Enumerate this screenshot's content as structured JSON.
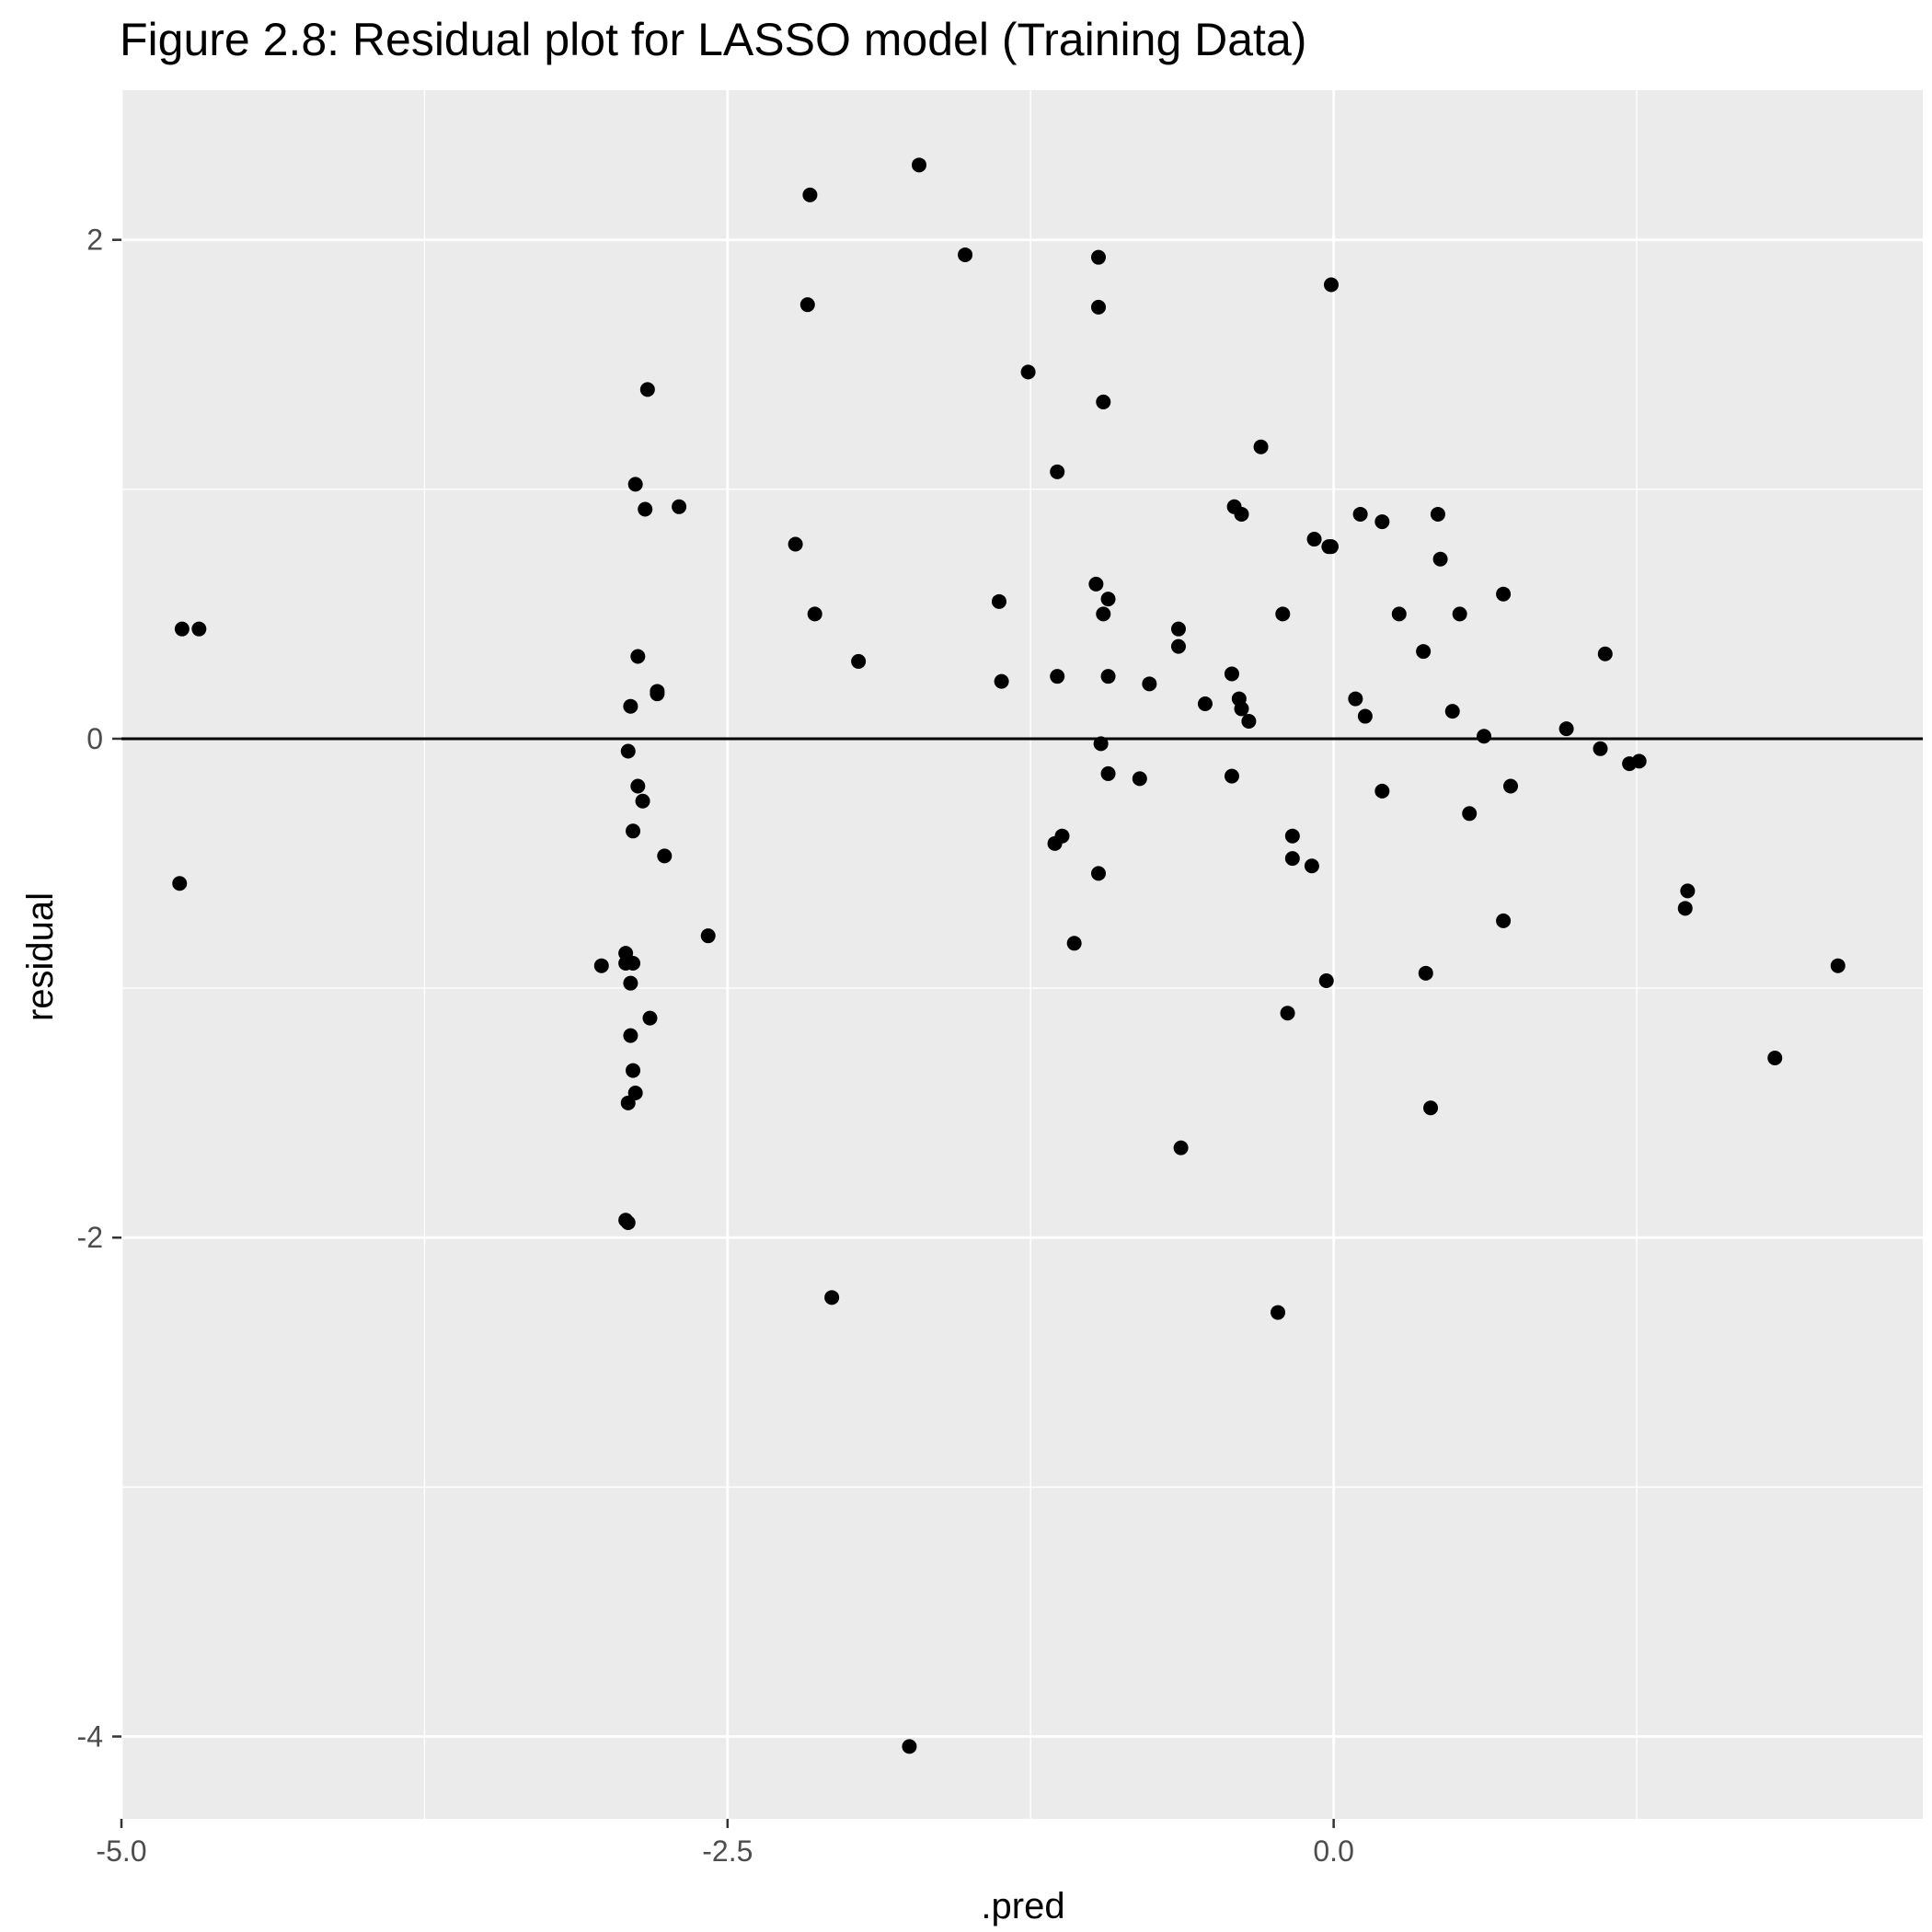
{
  "chart_data": {
    "type": "scatter",
    "title": "Figure 2.8: Residual plot for LASSO model (Training Data)",
    "xlabel": ".pred",
    "ylabel": "residual",
    "xlim": [
      -5.0,
      2.43
    ],
    "ylim": [
      -4.33,
      2.6
    ],
    "x_ticks": [
      {
        "value": -5.0,
        "label": "-5.0"
      },
      {
        "value": -2.5,
        "label": "-2.5"
      },
      {
        "value": 0.0,
        "label": "0.0"
      }
    ],
    "y_ticks": [
      {
        "value": 2,
        "label": "2"
      },
      {
        "value": 0,
        "label": "0"
      },
      {
        "value": -2,
        "label": "-2"
      },
      {
        "value": -4,
        "label": "-4"
      }
    ],
    "x_minor": [
      -3.75,
      -1.25,
      1.25
    ],
    "y_minor": [
      1,
      -1,
      -3
    ],
    "hline": 0,
    "panel_color": "#ebebeb",
    "grid_color": "#ffffff",
    "point_color": "#000000",
    "points": [
      {
        "x": -4.75,
        "y": 0.44
      },
      {
        "x": -4.68,
        "y": 0.44
      },
      {
        "x": -4.76,
        "y": -0.58
      },
      {
        "x": -2.83,
        "y": 1.4
      },
      {
        "x": -2.88,
        "y": 1.02
      },
      {
        "x": -2.84,
        "y": 0.92
      },
      {
        "x": -2.7,
        "y": 0.93
      },
      {
        "x": -2.87,
        "y": 0.33
      },
      {
        "x": -2.79,
        "y": 0.18
      },
      {
        "x": -2.79,
        "y": 0.19
      },
      {
        "x": -2.9,
        "y": 0.13
      },
      {
        "x": -2.91,
        "y": -0.05
      },
      {
        "x": -2.87,
        "y": -0.19
      },
      {
        "x": -2.85,
        "y": -0.25
      },
      {
        "x": -2.89,
        "y": -0.37
      },
      {
        "x": -2.76,
        "y": -0.47
      },
      {
        "x": -2.58,
        "y": -0.79
      },
      {
        "x": -2.92,
        "y": -0.86
      },
      {
        "x": -2.92,
        "y": -0.9
      },
      {
        "x": -2.89,
        "y": -0.9
      },
      {
        "x": -3.02,
        "y": -0.91
      },
      {
        "x": -2.9,
        "y": -0.98
      },
      {
        "x": -2.82,
        "y": -1.12
      },
      {
        "x": -2.9,
        "y": -1.19
      },
      {
        "x": -2.89,
        "y": -1.33
      },
      {
        "x": -2.88,
        "y": -1.42
      },
      {
        "x": -2.91,
        "y": -1.46
      },
      {
        "x": -2.92,
        "y": -1.93
      },
      {
        "x": -2.91,
        "y": -1.94
      },
      {
        "x": -2.16,
        "y": 2.18
      },
      {
        "x": -2.17,
        "y": 1.74
      },
      {
        "x": -2.22,
        "y": 0.78
      },
      {
        "x": -2.14,
        "y": 0.5
      },
      {
        "x": -1.96,
        "y": 0.31
      },
      {
        "x": -2.07,
        "y": -2.24
      },
      {
        "x": -1.71,
        "y": 2.3
      },
      {
        "x": -1.52,
        "y": 1.94
      },
      {
        "x": -1.75,
        "y": -4.04
      },
      {
        "x": -1.38,
        "y": 0.55
      },
      {
        "x": -1.37,
        "y": 0.23
      },
      {
        "x": -1.26,
        "y": 1.47
      },
      {
        "x": -1.14,
        "y": 1.07
      },
      {
        "x": -1.14,
        "y": 0.25
      },
      {
        "x": -1.12,
        "y": -0.39
      },
      {
        "x": -1.15,
        "y": -0.42
      },
      {
        "x": -1.07,
        "y": -0.82
      },
      {
        "x": -0.97,
        "y": 1.93
      },
      {
        "x": -0.97,
        "y": 1.73
      },
      {
        "x": -0.95,
        "y": 1.35
      },
      {
        "x": -0.93,
        "y": 0.56
      },
      {
        "x": -0.93,
        "y": 0.25
      },
      {
        "x": -0.93,
        "y": -0.14
      },
      {
        "x": -0.98,
        "y": 0.62
      },
      {
        "x": -0.95,
        "y": 0.5
      },
      {
        "x": -0.96,
        "y": -0.02
      },
      {
        "x": -0.97,
        "y": -0.54
      },
      {
        "x": -0.76,
        "y": 0.22
      },
      {
        "x": -0.8,
        "y": -0.16
      },
      {
        "x": -0.64,
        "y": 0.44
      },
      {
        "x": -0.64,
        "y": 0.37
      },
      {
        "x": -0.63,
        "y": -1.64
      },
      {
        "x": -0.53,
        "y": 0.14
      },
      {
        "x": -0.3,
        "y": 1.17
      },
      {
        "x": -0.41,
        "y": 0.93
      },
      {
        "x": -0.38,
        "y": 0.9
      },
      {
        "x": -0.42,
        "y": 0.26
      },
      {
        "x": -0.39,
        "y": 0.16
      },
      {
        "x": -0.38,
        "y": 0.12
      },
      {
        "x": -0.35,
        "y": 0.07
      },
      {
        "x": -0.42,
        "y": -0.15
      },
      {
        "x": -0.21,
        "y": 0.5
      },
      {
        "x": -0.17,
        "y": -0.39
      },
      {
        "x": -0.17,
        "y": -0.48
      },
      {
        "x": -0.09,
        "y": -0.51
      },
      {
        "x": -0.19,
        "y": -1.1
      },
      {
        "x": -0.23,
        "y": -2.3
      },
      {
        "x": -0.08,
        "y": 0.8
      },
      {
        "x": -0.01,
        "y": 0.77
      },
      {
        "x": -0.02,
        "y": 0.77
      },
      {
        "x": -0.01,
        "y": 1.82
      },
      {
        "x": -0.03,
        "y": -0.97
      },
      {
        "x": 0.11,
        "y": 0.9
      },
      {
        "x": 0.2,
        "y": 0.87
      },
      {
        "x": 0.09,
        "y": 0.16
      },
      {
        "x": 0.13,
        "y": 0.09
      },
      {
        "x": 0.2,
        "y": -0.21
      },
      {
        "x": 0.27,
        "y": 0.5
      },
      {
        "x": 0.37,
        "y": 0.35
      },
      {
        "x": 0.43,
        "y": 0.9
      },
      {
        "x": 0.44,
        "y": 0.72
      },
      {
        "x": 0.52,
        "y": 0.5
      },
      {
        "x": 0.49,
        "y": 0.11
      },
      {
        "x": 0.56,
        "y": -0.3
      },
      {
        "x": 0.38,
        "y": -0.94
      },
      {
        "x": 0.4,
        "y": -1.48
      },
      {
        "x": 0.62,
        "y": 0.01
      },
      {
        "x": 0.7,
        "y": 0.58
      },
      {
        "x": 0.73,
        "y": -0.19
      },
      {
        "x": 0.7,
        "y": -0.73
      },
      {
        "x": 0.96,
        "y": 0.04
      },
      {
        "x": 1.1,
        "y": -0.04
      },
      {
        "x": 1.12,
        "y": 0.34
      },
      {
        "x": 1.22,
        "y": -0.1
      },
      {
        "x": 1.26,
        "y": -0.09
      },
      {
        "x": 1.46,
        "y": -0.61
      },
      {
        "x": 1.45,
        "y": -0.68
      },
      {
        "x": 1.82,
        "y": -1.28
      },
      {
        "x": 2.08,
        "y": -0.91
      }
    ]
  }
}
